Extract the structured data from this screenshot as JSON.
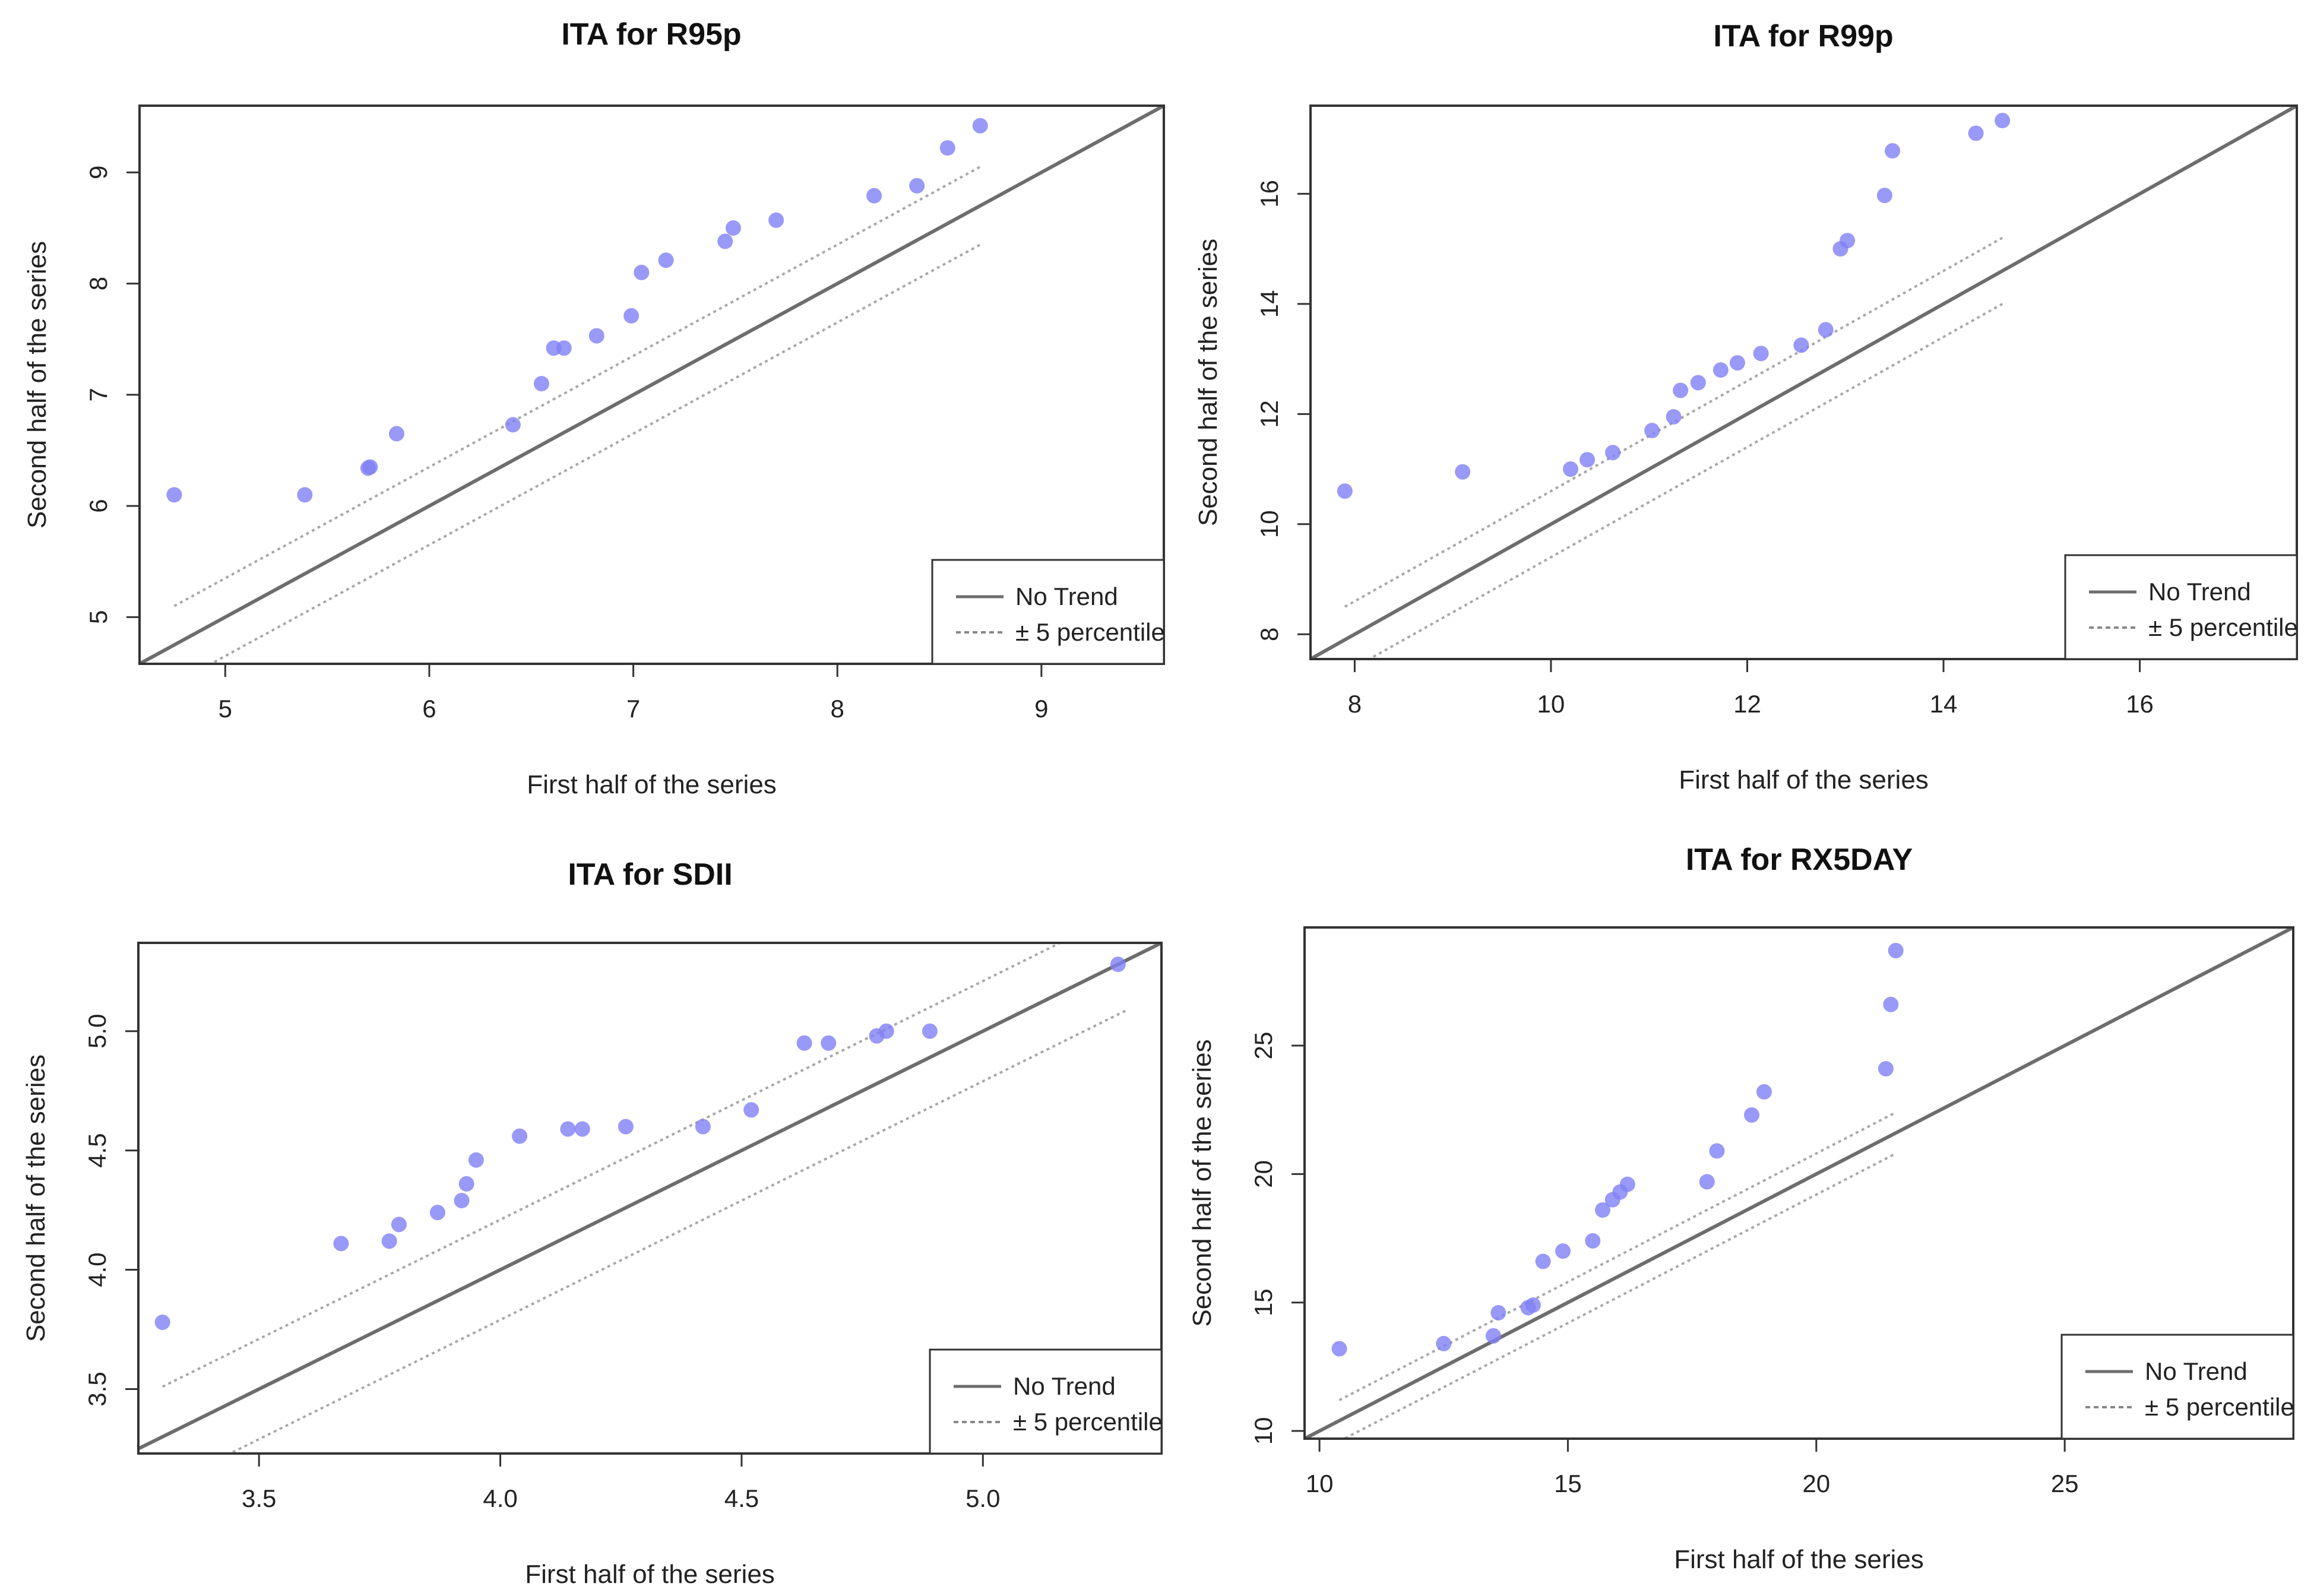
{
  "chart_data": [
    {
      "type": "scatter",
      "title": "ITA for R95p",
      "xlabel": "First half of the series",
      "ylabel": "Second half of the series",
      "xlim": [
        4.58,
        9.6
      ],
      "ylim": [
        4.58,
        9.6
      ],
      "xticks": [
        5,
        6,
        7,
        8,
        9
      ],
      "yticks": [
        5,
        6,
        7,
        8,
        9
      ],
      "band_offset": 0.35,
      "band_range": [
        4.75,
        8.7
      ],
      "legend": [
        "No Trend",
        "± 5 percentile"
      ],
      "legend_position": "bottom-right",
      "series": [
        {
          "name": "observations",
          "x": [
            4.75,
            5.39,
            5.7,
            5.71,
            5.84,
            6.41,
            6.55,
            6.61,
            6.66,
            6.82,
            6.99,
            7.04,
            7.16,
            7.45,
            7.49,
            7.7,
            8.18,
            8.39,
            8.54,
            8.7
          ],
          "y": [
            6.1,
            6.1,
            6.34,
            6.35,
            6.65,
            6.73,
            7.1,
            7.42,
            7.42,
            7.53,
            7.71,
            8.1,
            8.21,
            8.38,
            8.5,
            8.57,
            8.79,
            8.88,
            9.22,
            9.42
          ]
        }
      ]
    },
    {
      "type": "scatter",
      "title": "ITA for R99p",
      "xlabel": "First half of the series",
      "ylabel": "Second half of the series",
      "xlim": [
        7.55,
        17.6
      ],
      "ylim": [
        7.55,
        17.6
      ],
      "xticks": [
        8,
        10,
        12,
        14,
        16
      ],
      "yticks": [
        8,
        10,
        12,
        14,
        16
      ],
      "band_offset": 0.6,
      "band_range": [
        7.9,
        14.6
      ],
      "legend": [
        "No Trend",
        "± 5 percentile"
      ],
      "legend_position": "bottom-right",
      "series": [
        {
          "name": "observations",
          "x": [
            7.9,
            9.1,
            10.2,
            10.37,
            10.63,
            11.03,
            11.25,
            11.32,
            11.5,
            11.73,
            11.9,
            12.14,
            12.55,
            12.8,
            12.95,
            13.02,
            13.4,
            13.48,
            14.33,
            14.6
          ],
          "y": [
            10.6,
            10.95,
            11.0,
            11.17,
            11.3,
            11.7,
            11.95,
            12.43,
            12.57,
            12.8,
            12.93,
            13.1,
            13.25,
            13.53,
            15.0,
            15.15,
            15.97,
            16.78,
            17.1,
            17.33
          ]
        }
      ]
    },
    {
      "type": "scatter",
      "title": "ITA for SDII",
      "xlabel": "First half of the series",
      "ylabel": "Second half of the series",
      "xlim": [
        3.25,
        5.37
      ],
      "ylim": [
        3.23,
        5.37
      ],
      "xticks": [
        3.5,
        4.0,
        4.5,
        5.0
      ],
      "yticks": [
        3.5,
        4.0,
        4.5,
        5.0
      ],
      "tick_labels": [
        "3.5",
        "4.0",
        "4.5",
        "5.0"
      ],
      "band_offset": 0.21,
      "band_range": [
        3.3,
        5.3
      ],
      "legend": [
        "No Trend",
        "± 5 percentile"
      ],
      "legend_position": "bottom-right",
      "series": [
        {
          "name": "observations",
          "x": [
            3.3,
            3.67,
            3.77,
            3.79,
            3.87,
            3.92,
            3.93,
            3.95,
            4.04,
            4.14,
            4.17,
            4.26,
            4.42,
            4.52,
            4.63,
            4.68,
            4.78,
            4.8,
            4.89,
            5.28
          ],
          "y": [
            3.78,
            4.11,
            4.12,
            4.19,
            4.24,
            4.29,
            4.36,
            4.46,
            4.56,
            4.59,
            4.59,
            4.6,
            4.6,
            4.67,
            4.95,
            4.95,
            4.98,
            5.0,
            5.0,
            5.28
          ]
        }
      ]
    },
    {
      "type": "scatter",
      "title": "ITA for RX5DAY",
      "xlabel": "First half of the series",
      "ylabel": "Second half of the series",
      "xlim": [
        9.7,
        29.6
      ],
      "ylim": [
        9.7,
        29.6
      ],
      "xticks": [
        10,
        15,
        20,
        25
      ],
      "yticks": [
        10,
        15,
        20,
        25
      ],
      "band_offset": 0.8,
      "band_range": [
        10.4,
        21.6
      ],
      "legend": [
        "No Trend",
        "± 5 percentile"
      ],
      "legend_position": "bottom-right",
      "series": [
        {
          "name": "observations",
          "x": [
            10.4,
            12.5,
            13.5,
            13.6,
            14.2,
            14.3,
            14.5,
            14.9,
            15.5,
            15.7,
            15.9,
            16.05,
            16.2,
            17.8,
            18.0,
            18.7,
            18.95,
            21.4,
            21.5,
            21.6
          ],
          "y": [
            13.2,
            13.4,
            13.7,
            14.6,
            14.8,
            14.9,
            16.6,
            17.0,
            17.4,
            18.6,
            19.0,
            19.3,
            19.6,
            19.7,
            20.9,
            22.3,
            23.2,
            24.1,
            26.6,
            28.7
          ]
        }
      ]
    }
  ],
  "colors": {
    "point": "#7f7ff5",
    "trend_line": "#6d6d6d",
    "band_line": "#a8a8a8",
    "frame": "#333333"
  }
}
